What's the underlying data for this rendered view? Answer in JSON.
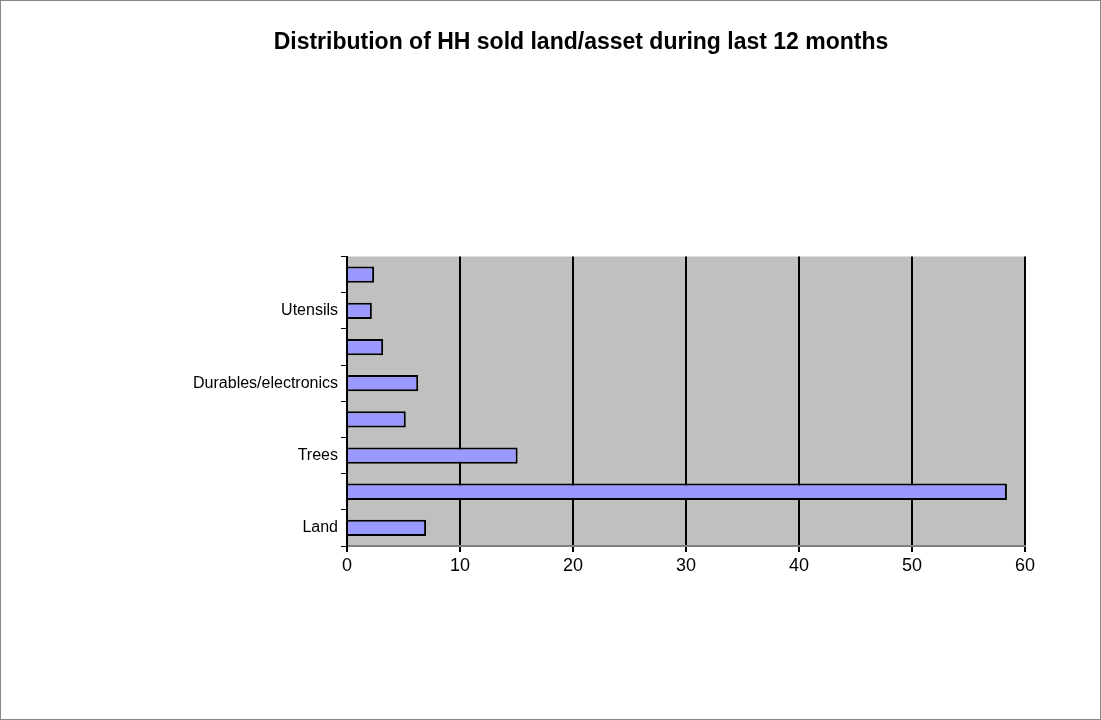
{
  "chart_data": {
    "type": "bar",
    "title": "Distribution of HH sold land/asset during last 12 months",
    "orientation": "horizontal",
    "categories": [
      null,
      "Utensils",
      null,
      "Durables/electronics",
      null,
      "Trees",
      null,
      "Land"
    ],
    "values": [
      2.4,
      2.2,
      3.2,
      6.3,
      5.2,
      15.1,
      58.4,
      7.0
    ],
    "color": "#9999ff",
    "xlim": [
      0,
      60
    ],
    "xticks": [
      0,
      10,
      20,
      30,
      40,
      50,
      60
    ],
    "grid": "x",
    "legend": false
  }
}
